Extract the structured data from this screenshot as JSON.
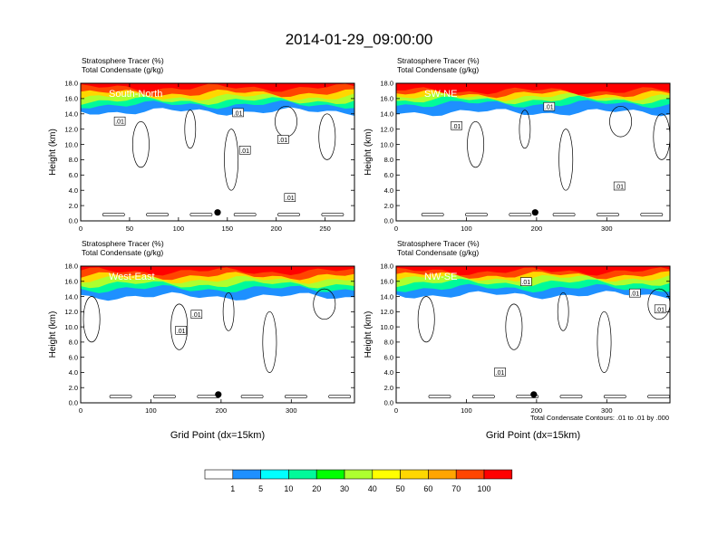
{
  "figure": {
    "title": "2014-01-29_09:00:00",
    "contour_note": "Total Condensate Contours: .01 to .01 by .000"
  },
  "colorbar": {
    "labels": [
      "1",
      "5",
      "10",
      "20",
      "30",
      "40",
      "50",
      "60",
      "70",
      "100"
    ],
    "colors": [
      "#ffffff",
      "#1e90ff",
      "#00ffff",
      "#00fa9a",
      "#00ff00",
      "#adff2f",
      "#ffff00",
      "#ffd700",
      "#ffa500",
      "#ff4500",
      "#ff0000"
    ]
  },
  "chart_data": [
    {
      "type": "heatmap",
      "panel_label": "South-North",
      "header_line1": "Stratosphere Tracer   (%)",
      "header_line2": "Total Condensate   (g/kg)",
      "ylabel": "Height (km)",
      "xlabel": "",
      "x_ticks": [
        0,
        50,
        100,
        150,
        200,
        250
      ],
      "y_ticks": [
        "0.0",
        "2.0",
        "4.0",
        "6.0",
        "8.0",
        "10.0",
        "12.0",
        "14.0",
        "16.0",
        "18.0"
      ],
      "xlim": [
        0,
        280
      ],
      "ylim": [
        0,
        18
      ],
      "tracer_layers": [
        {
          "pct": 100,
          "base": 17.4
        },
        {
          "pct": 70,
          "base": 16.7
        },
        {
          "pct": 50,
          "base": 16.2
        },
        {
          "pct": 30,
          "base": 15.7
        },
        {
          "pct": 10,
          "base": 15.2
        },
        {
          "pct": 1,
          "base": 14.3
        }
      ],
      "contour_labels": [
        {
          "text": ".01",
          "x": 40,
          "y": 13.0
        },
        {
          "text": ".01",
          "x": 161,
          "y": 14.1
        },
        {
          "text": ".01",
          "x": 168,
          "y": 9.2
        },
        {
          "text": ".01",
          "x": 207,
          "y": 10.6
        },
        {
          "text": ".01",
          "x": 214,
          "y": 3.0
        }
      ],
      "marker": {
        "x": 140,
        "y": 1.1
      }
    },
    {
      "type": "heatmap",
      "panel_label": "SW-NE",
      "header_line1": "Stratosphere Tracer   (%)",
      "header_line2": "Total Condensate   (g/kg)",
      "ylabel": "Height (km)",
      "xlabel": "",
      "x_ticks": [
        0,
        100,
        200,
        300
      ],
      "y_ticks": [
        "0.0",
        "2.0",
        "4.0",
        "6.0",
        "8.0",
        "10.0",
        "12.0",
        "14.0",
        "16.0",
        "18.0"
      ],
      "xlim": [
        0,
        390
      ],
      "ylim": [
        0,
        18
      ],
      "tracer_layers": [
        {
          "pct": 100,
          "base": 17.0
        },
        {
          "pct": 70,
          "base": 16.6
        },
        {
          "pct": 50,
          "base": 16.2
        },
        {
          "pct": 30,
          "base": 15.8
        },
        {
          "pct": 10,
          "base": 15.3
        },
        {
          "pct": 1,
          "base": 14.2
        }
      ],
      "contour_labels": [
        {
          "text": ".01",
          "x": 86,
          "y": 12.4
        },
        {
          "text": ".01",
          "x": 218,
          "y": 14.9
        },
        {
          "text": ".01",
          "x": 318,
          "y": 4.5
        }
      ],
      "marker": {
        "x": 198,
        "y": 1.1
      }
    },
    {
      "type": "heatmap",
      "panel_label": "West-East",
      "header_line1": "Stratosphere Tracer   (%)",
      "header_line2": "Total Condensate   (g/kg)",
      "ylabel": "Height (km)",
      "xlabel": "Grid Point (dx=15km)",
      "x_ticks": [
        0,
        100,
        200,
        300
      ],
      "y_ticks": [
        "0.0",
        "2.0",
        "4.0",
        "6.0",
        "8.0",
        "10.0",
        "12.0",
        "14.0",
        "16.0",
        "18.0"
      ],
      "xlim": [
        0,
        390
      ],
      "ylim": [
        0,
        18
      ],
      "tracer_layers": [
        {
          "pct": 100,
          "base": 17.3
        },
        {
          "pct": 70,
          "base": 16.7
        },
        {
          "pct": 50,
          "base": 16.2
        },
        {
          "pct": 30,
          "base": 15.6
        },
        {
          "pct": 10,
          "base": 15.0
        },
        {
          "pct": 1,
          "base": 14.0
        }
      ],
      "contour_labels": [
        {
          "text": ".01",
          "x": 165,
          "y": 11.6
        },
        {
          "text": ".01",
          "x": 143,
          "y": 9.5
        }
      ],
      "marker": {
        "x": 196,
        "y": 1.1
      }
    },
    {
      "type": "heatmap",
      "panel_label": "NW-SE",
      "header_line1": "Stratosphere Tracer   (%)",
      "header_line2": "Total Condensate   (g/kg)",
      "ylabel": "Height (km)",
      "xlabel": "Grid Point (dx=15km)",
      "x_ticks": [
        0,
        100,
        200,
        300
      ],
      "y_ticks": [
        "0.0",
        "2.0",
        "4.0",
        "6.0",
        "8.0",
        "10.0",
        "12.0",
        "14.0",
        "16.0",
        "18.0"
      ],
      "xlim": [
        0,
        390
      ],
      "ylim": [
        0,
        18
      ],
      "tracer_layers": [
        {
          "pct": 100,
          "base": 17.3
        },
        {
          "pct": 70,
          "base": 16.8
        },
        {
          "pct": 50,
          "base": 16.4
        },
        {
          "pct": 30,
          "base": 15.8
        },
        {
          "pct": 10,
          "base": 15.1
        },
        {
          "pct": 1,
          "base": 14.2
        }
      ],
      "contour_labels": [
        {
          "text": ".01",
          "x": 185,
          "y": 15.9
        },
        {
          "text": ".01",
          "x": 340,
          "y": 14.4
        },
        {
          "text": ".01",
          "x": 376,
          "y": 12.3
        },
        {
          "text": ".01",
          "x": 148,
          "y": 4.0
        }
      ],
      "marker": {
        "x": 196,
        "y": 1.1
      }
    }
  ]
}
